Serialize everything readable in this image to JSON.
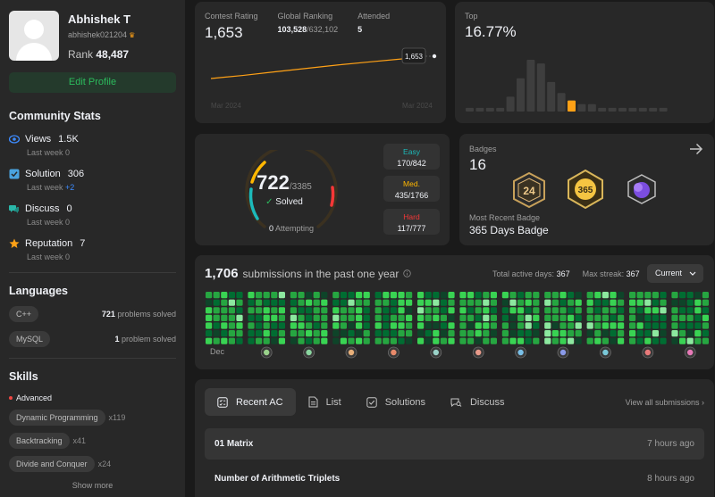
{
  "profile": {
    "name": "Abhishek T",
    "username": "abhishek021204",
    "rank_label": "Rank",
    "rank_value": "48,487",
    "edit_button": "Edit Profile"
  },
  "community": {
    "title": "Community Stats",
    "items": [
      {
        "label": "Views",
        "value": "1.5K",
        "sub_label": "Last week",
        "sub_value": "0",
        "color": "#3d8bff"
      },
      {
        "label": "Solution",
        "value": "306",
        "sub_label": "Last week",
        "sub_value": "+2",
        "color": "#4aa3df"
      },
      {
        "label": "Discuss",
        "value": "0",
        "sub_label": "Last week",
        "sub_value": "0",
        "color": "#2ab7a9"
      },
      {
        "label": "Reputation",
        "value": "7",
        "sub_label": "Last week",
        "sub_value": "0",
        "color": "#ffa116"
      }
    ]
  },
  "languages": {
    "title": "Languages",
    "items": [
      {
        "name": "C++",
        "count": "721",
        "suffix": "problems solved"
      },
      {
        "name": "MySQL",
        "count": "1",
        "suffix": "problem solved"
      }
    ]
  },
  "skills": {
    "title": "Skills",
    "level": "Advanced",
    "items": [
      {
        "name": "Dynamic Programming",
        "count": "x119"
      },
      {
        "name": "Backtracking",
        "count": "x41"
      },
      {
        "name": "Divide and Conquer",
        "count": "x24"
      }
    ],
    "show_more": "Show more"
  },
  "contest": {
    "rating_label": "Contest Rating",
    "rating": "1,653",
    "global_label": "Global Ranking",
    "global_rank": "103,528",
    "global_total": "/632,102",
    "attended_label": "Attended",
    "attended": "5",
    "tooltip": "1,653",
    "axis_start": "Mar 2024",
    "axis_end": "Mar 2024",
    "line_color": "#ffa116",
    "history": [
      1500,
      1524,
      1552,
      1579,
      1606,
      1630,
      1653
    ]
  },
  "top": {
    "label": "Top",
    "value": "16.77%",
    "histogram": [
      1,
      1,
      1,
      1,
      4,
      9,
      14,
      13,
      8,
      5,
      3,
      2,
      2,
      1,
      1,
      1,
      1,
      1,
      1,
      1
    ],
    "highlight_index": 10,
    "bar_color": "#3e3e3e",
    "highlight_color": "#ffa116"
  },
  "solved": {
    "solved": "722",
    "total": "/3385",
    "label": "Solved",
    "attempting_count": "0",
    "attempting_label": "Attempting",
    "difficulties": [
      {
        "name": "Easy",
        "value": "170/842",
        "color": "#1cbaba"
      },
      {
        "name": "Med.",
        "value": "435/1766",
        "color": "#ffb700"
      },
      {
        "name": "Hard",
        "value": "117/777",
        "color": "#f63737"
      }
    ]
  },
  "badges": {
    "label": "Badges",
    "count": "16",
    "badge_texts": [
      "24",
      "365",
      ""
    ],
    "recent_label": "Most Recent Badge",
    "recent_name": "365 Days Badge"
  },
  "submissions": {
    "count": "1,706",
    "text": "submissions in the past one year",
    "active_label": "Total active days:",
    "active_value": "367",
    "streak_label": "Max streak:",
    "streak_value": "367",
    "select_value": "Current",
    "first_month": "Dec",
    "level_colors": [
      "#2f3a31",
      "#0e4429",
      "#006d32",
      "#26a641",
      "#39d353",
      "#8ce89f"
    ]
  },
  "recent": {
    "tabs": [
      "Recent AC",
      "List",
      "Solutions",
      "Discuss"
    ],
    "view_all": "View all submissions",
    "rows": [
      {
        "title": "01 Matrix",
        "ago": "7 hours ago"
      },
      {
        "title": "Number of Arithmetic Triplets",
        "ago": "8 hours ago"
      }
    ]
  }
}
